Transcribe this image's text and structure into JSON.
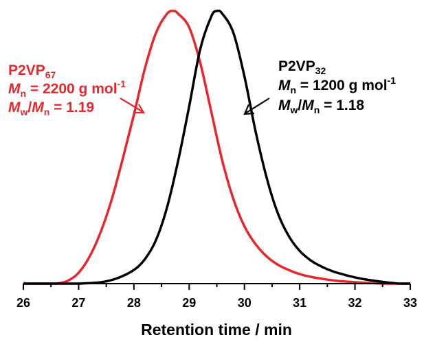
{
  "chart_data": {
    "type": "line",
    "xlabel": "Retention time / min",
    "ylabel": "",
    "xlim": [
      26,
      33
    ],
    "ylim": [
      0,
      1
    ],
    "x_ticks": [
      "26",
      "27",
      "28",
      "29",
      "30",
      "31",
      "32",
      "33"
    ],
    "grid": false,
    "series": [
      {
        "name": "P2VP67",
        "color": "#e8262b",
        "peak_x": 28.72,
        "x": [
          26.6,
          26.8,
          27.0,
          27.2,
          27.4,
          27.6,
          27.8,
          28.0,
          28.2,
          28.4,
          28.6,
          28.72,
          28.8,
          29.0,
          29.2,
          29.4,
          29.6,
          29.8,
          30.0,
          30.2,
          30.4,
          30.6,
          30.8,
          31.0,
          31.2,
          31.4,
          31.6,
          31.8,
          32.0,
          32.2,
          32.4,
          32.6
        ],
        "y": [
          0.0,
          0.01,
          0.04,
          0.1,
          0.19,
          0.31,
          0.46,
          0.62,
          0.79,
          0.92,
          0.99,
          1.0,
          0.99,
          0.94,
          0.81,
          0.63,
          0.45,
          0.31,
          0.21,
          0.145,
          0.1,
          0.07,
          0.05,
          0.035,
          0.025,
          0.018,
          0.012,
          0.008,
          0.005,
          0.003,
          0.001,
          0.0
        ]
      },
      {
        "name": "P2VP32",
        "color": "#000000",
        "peak_x": 29.5,
        "x": [
          27.0,
          27.4,
          27.7,
          28.0,
          28.2,
          28.4,
          28.6,
          28.8,
          29.0,
          29.2,
          29.4,
          29.5,
          29.6,
          29.8,
          30.0,
          30.2,
          30.4,
          30.6,
          30.8,
          31.0,
          31.2,
          31.4,
          31.6,
          31.8,
          32.0,
          32.2,
          32.4,
          32.6,
          32.8
        ],
        "y": [
          0.0,
          0.005,
          0.02,
          0.05,
          0.09,
          0.16,
          0.28,
          0.45,
          0.65,
          0.86,
          0.98,
          1.0,
          0.99,
          0.92,
          0.76,
          0.56,
          0.39,
          0.26,
          0.175,
          0.12,
          0.085,
          0.062,
          0.045,
          0.033,
          0.023,
          0.015,
          0.009,
          0.004,
          0.0
        ]
      }
    ],
    "annotations": [
      {
        "id": "red",
        "color": "#e8262b",
        "line1_base": "P2VP",
        "line1_sub": "67",
        "line2_italic": "M",
        "line2_sub": "n",
        "line2_rest": " = 2200 g mol",
        "line2_sup": "-1",
        "line3_italic_a": "M",
        "line3_sub_a": "w",
        "line3_mid": "/",
        "line3_italic_b": "M",
        "line3_sub_b": "n",
        "line3_rest": " = 1.19"
      },
      {
        "id": "black",
        "color": "#000000",
        "line1_base": "P2VP",
        "line1_sub": "32",
        "line2_italic": "M",
        "line2_sub": "n",
        "line2_rest": " = 1200 g mol",
        "line2_sup": "-1",
        "line3_italic_a": "M",
        "line3_sub_a": "w",
        "line3_mid": "/",
        "line3_italic_b": "M",
        "line3_sub_b": "n",
        "line3_rest": " = 1.18"
      }
    ]
  }
}
